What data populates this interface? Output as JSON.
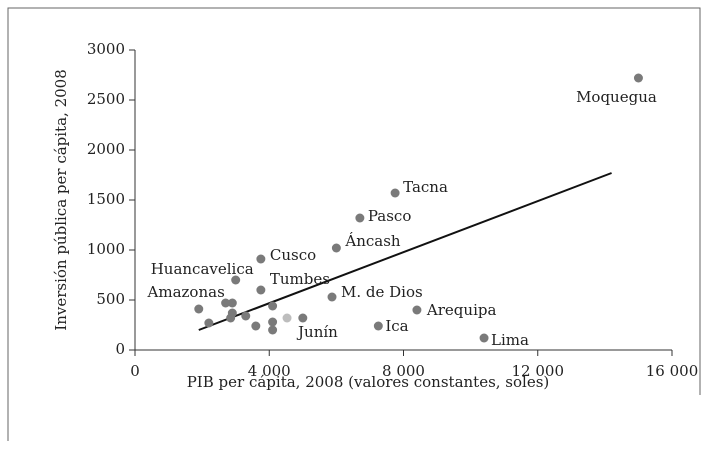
{
  "chart_data": {
    "type": "scatter",
    "x_label": "PIB per cápita, 2008 (valores constantes, soles)",
    "y_label": "Inversión pública per cápita, 2008",
    "x": [
      15000,
      7750,
      6700,
      6000,
      3750,
      3000,
      3750,
      5870,
      8400,
      7250,
      10400,
      1900,
      4530,
      2200,
      2700,
      2900,
      2900,
      2850,
      3300,
      3600,
      4100,
      4100,
      4100,
      5000
    ],
    "y": [
      2720,
      1570,
      1320,
      1020,
      910,
      700,
      600,
      530,
      400,
      240,
      120,
      410,
      320,
      270,
      470,
      370,
      470,
      320,
      340,
      240,
      440,
      280,
      200,
      320
    ],
    "labels": [
      "Moquegua",
      "Tacna",
      "Pasco",
      "Áncash",
      "Cusco",
      "Huancavelica",
      "Tumbes",
      "M. de Dios",
      "Arequipa",
      "Ica",
      "Lima",
      "Amazonas",
      "Junín",
      null,
      null,
      null,
      null,
      null,
      null,
      null,
      null,
      null,
      null,
      null
    ],
    "colors": [
      "#7a7a7a",
      "#7a7a7a",
      "#7a7a7a",
      "#7a7a7a",
      "#7a7a7a",
      "#7a7a7a",
      "#7a7a7a",
      "#7a7a7a",
      "#7a7a7a",
      "#7a7a7a",
      "#7a7a7a",
      "#7a7a7a",
      "#bdbdbd",
      "#7a7a7a",
      "#7a7a7a",
      "#7a7a7a",
      "#7a7a7a",
      "#7a7a7a",
      "#7a7a7a",
      "#7a7a7a",
      "#7a7a7a",
      "#7a7a7a",
      "#7a7a7a",
      "#7a7a7a"
    ],
    "trendline": {
      "x": [
        1900,
        14200
      ],
      "y": [
        200,
        1770
      ],
      "color": "#111111"
    },
    "xlim": [
      0,
      16000
    ],
    "ylim": [
      0,
      3000
    ],
    "xticks": [
      0,
      {
        "value": 4000,
        "label": "4 000"
      },
      {
        "value": 8000,
        "label": "8 000"
      },
      {
        "value": 12000,
        "label": "12 000"
      },
      {
        "value": 16000,
        "label": "16 000"
      }
    ],
    "yticks": [
      0,
      500,
      1000,
      1500,
      2000,
      2500,
      3000
    ]
  }
}
